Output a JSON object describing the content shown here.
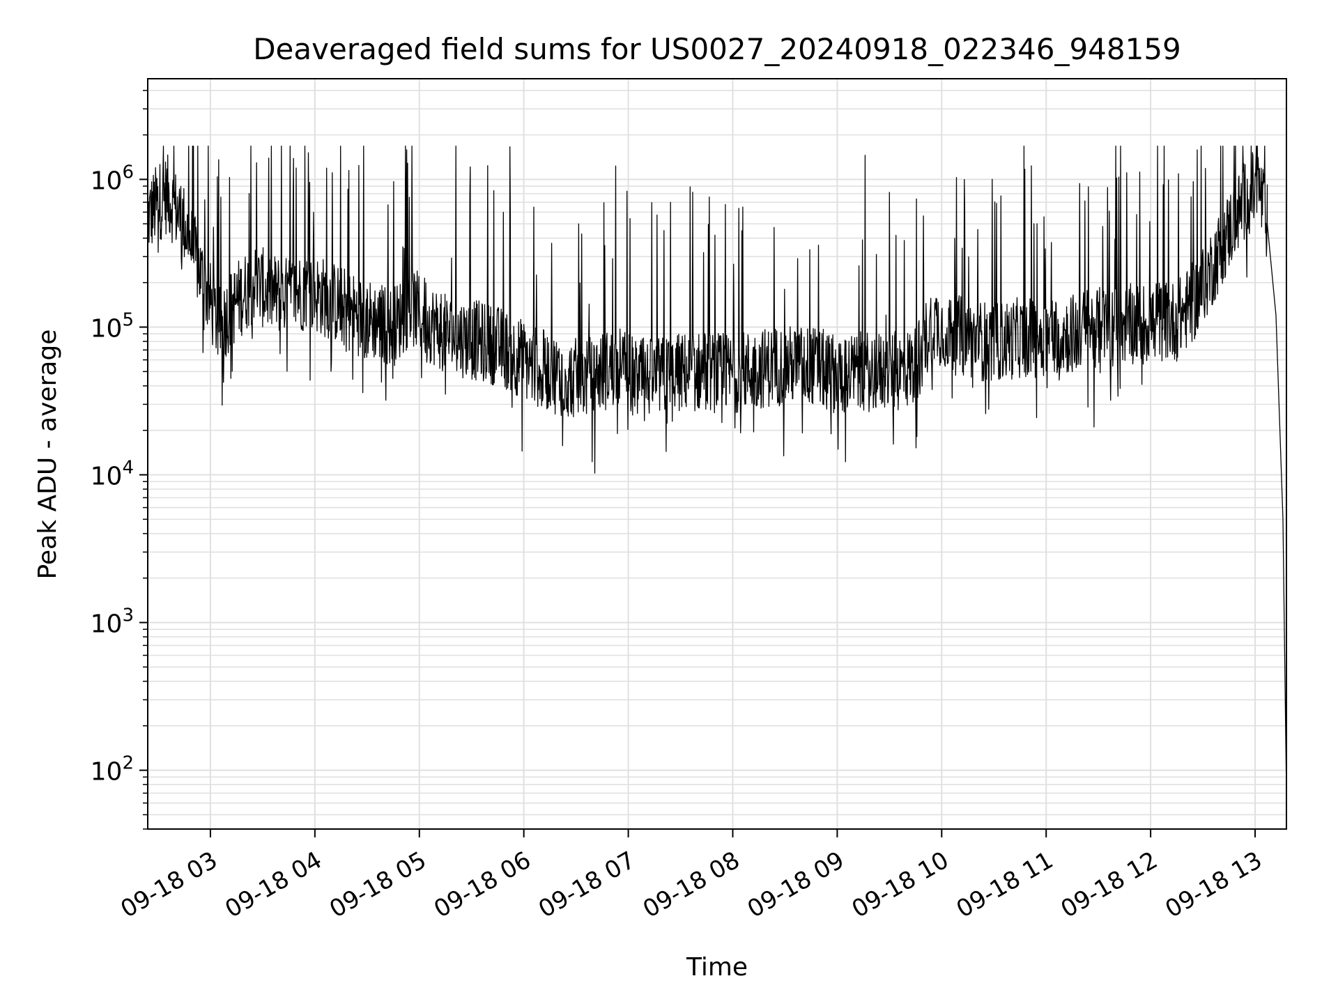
{
  "chart_data": {
    "type": "line",
    "title": "Deaveraged field sums for US0027_20240918_022346_948159",
    "xlabel": "Time",
    "ylabel": "Peak ADU - average",
    "yscale": "log",
    "ylim": [
      40,
      4800000
    ],
    "xlim": [
      "09-18 02:24",
      "09-18 13:18"
    ],
    "grid": true,
    "legend": "none",
    "line_color": "#000000",
    "grid_color": "#e0e0e0",
    "x_ticks": [
      "09-18 03",
      "09-18 04",
      "09-18 05",
      "09-18 06",
      "09-18 07",
      "09-18 08",
      "09-18 09",
      "09-18 10",
      "09-18 11",
      "09-18 12",
      "09-18 13"
    ],
    "y_ticks": [
      {
        "value": 100,
        "base": "10",
        "exp": "2"
      },
      {
        "value": 1000,
        "base": "10",
        "exp": "3"
      },
      {
        "value": 10000,
        "base": "10",
        "exp": "4"
      },
      {
        "value": 100000,
        "base": "10",
        "exp": "5"
      },
      {
        "value": 1000000,
        "base": "10",
        "exp": "6"
      }
    ],
    "series": [
      {
        "x": [
          "09-18 02:24",
          "09-18 02:30",
          "09-18 02:35",
          "09-18 02:45",
          "09-18 02:55",
          "09-18 03:05",
          "09-18 03:15",
          "09-18 03:25",
          "09-18 03:35",
          "09-18 03:45",
          "09-18 03:55",
          "09-18 04:05",
          "09-18 04:15",
          "09-18 04:25",
          "09-18 04:35",
          "09-18 04:45",
          "09-18 04:55",
          "09-18 05:05",
          "09-18 05:15",
          "09-18 05:25",
          "09-18 05:35",
          "09-18 05:45",
          "09-18 05:55",
          "09-18 06:05",
          "09-18 06:15",
          "09-18 06:25",
          "09-18 06:35",
          "09-18 06:45",
          "09-18 06:55",
          "09-18 07:05",
          "09-18 07:15",
          "09-18 07:25",
          "09-18 07:35",
          "09-18 07:45",
          "09-18 07:55",
          "09-18 08:05",
          "09-18 08:15",
          "09-18 08:25",
          "09-18 08:35",
          "09-18 08:45",
          "09-18 08:55",
          "09-18 09:05",
          "09-18 09:15",
          "09-18 09:25",
          "09-18 09:35",
          "09-18 09:45",
          "09-18 09:55",
          "09-18 10:05",
          "09-18 10:15",
          "09-18 10:25",
          "09-18 10:35",
          "09-18 10:45",
          "09-18 10:55",
          "09-18 11:05",
          "09-18 11:15",
          "09-18 11:25",
          "09-18 11:35",
          "09-18 11:45",
          "09-18 11:55",
          "09-18 12:05",
          "09-18 12:15",
          "09-18 12:25",
          "09-18 12:35",
          "09-18 12:45",
          "09-18 12:55",
          "09-18 13:02",
          "09-18 13:07",
          "09-18 13:12",
          "09-18 13:16",
          "09-18 13:18"
        ],
        "y": [
          550000,
          700000,
          800000,
          500000,
          220000,
          100000,
          150000,
          200000,
          170000,
          160000,
          180000,
          160000,
          140000,
          120000,
          110000,
          100000,
          140000,
          110000,
          90000,
          85000,
          80000,
          75000,
          65000,
          55000,
          50000,
          45000,
          45000,
          50000,
          55000,
          45000,
          45000,
          48000,
          50000,
          50000,
          48000,
          50000,
          52000,
          55000,
          55000,
          55000,
          50000,
          48000,
          50000,
          50000,
          50000,
          55000,
          110000,
          90000,
          85000,
          80000,
          80000,
          85000,
          85000,
          90000,
          90000,
          100000,
          100000,
          105000,
          105000,
          110000,
          110000,
          150000,
          250000,
          450000,
          750000,
          900000,
          500000,
          120000,
          5000,
          70
        ]
      }
    ]
  }
}
